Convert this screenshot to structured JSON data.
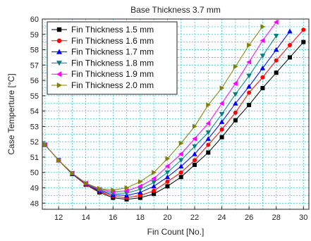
{
  "chart_data": {
    "type": "line",
    "title": "Base Thickness 3.7 mm",
    "xlabel": "Fin Count [No.]",
    "ylabel": "Case Temperture [°C]",
    "xlim": [
      10.8,
      30.4
    ],
    "ylim": [
      47.6,
      60
    ],
    "xticks": [
      12,
      14,
      16,
      18,
      20,
      22,
      24,
      26,
      28,
      30
    ],
    "yticks": [
      48,
      49,
      50,
      51,
      52,
      53,
      54,
      55,
      56,
      57,
      58,
      59,
      60
    ],
    "grid": true,
    "legend_position": "top-left",
    "series": [
      {
        "name": "Fin Thickness 1.5 mm",
        "color": "#000000",
        "marker": "square",
        "x": [
          11,
          12,
          13,
          14,
          15,
          16,
          17,
          18,
          19,
          20,
          21,
          22,
          23,
          24,
          25,
          26,
          27,
          28,
          29,
          30
        ],
        "y": [
          51.8,
          50.8,
          49.9,
          49.2,
          48.7,
          48.35,
          48.25,
          48.35,
          48.6,
          49.1,
          49.7,
          50.5,
          51.3,
          52.3,
          53.4,
          54.4,
          55.5,
          56.5,
          57.5,
          58.5
        ]
      },
      {
        "name": "Fin Thickness 1.6 mm",
        "color": "#ff0000",
        "marker": "circle",
        "x": [
          11,
          12,
          13,
          14,
          15,
          16,
          17,
          18,
          19,
          20,
          21,
          22,
          23,
          24,
          25,
          26,
          27,
          28,
          29,
          30
        ],
        "y": [
          51.8,
          50.8,
          49.9,
          49.2,
          48.75,
          48.45,
          48.35,
          48.5,
          48.8,
          49.4,
          50.0,
          50.8,
          51.8,
          52.8,
          53.9,
          55.2,
          56.2,
          57.3,
          58.3,
          59.3
        ]
      },
      {
        "name": "Fin Thickness 1.7 mm",
        "color": "#0000ff",
        "marker": "triangle-up",
        "x": [
          11,
          12,
          13,
          14,
          15,
          16,
          17,
          18,
          19,
          20,
          21,
          22,
          23,
          24,
          25,
          26,
          27,
          28,
          29
        ],
        "y": [
          51.8,
          50.8,
          49.9,
          49.25,
          48.8,
          48.55,
          48.5,
          48.7,
          49.1,
          49.7,
          50.4,
          51.2,
          52.2,
          53.3,
          54.5,
          55.6,
          56.8,
          58.0,
          59.2
        ]
      },
      {
        "name": "Fin Thickness 1.8 mm",
        "color": "#008080",
        "marker": "triangle-down",
        "x": [
          11,
          12,
          13,
          14,
          15,
          16,
          17,
          18,
          19,
          20,
          21,
          22,
          23,
          24,
          25,
          26,
          27,
          28
        ],
        "y": [
          51.8,
          50.8,
          49.95,
          49.25,
          48.85,
          48.65,
          48.65,
          48.9,
          49.35,
          50.0,
          50.8,
          51.7,
          52.6,
          53.8,
          55.1,
          56.3,
          57.6,
          58.9
        ]
      },
      {
        "name": "Fin Thickness 1.9 mm",
        "color": "#ff00ff",
        "marker": "triangle-left",
        "x": [
          11,
          12,
          13,
          14,
          15,
          16,
          17,
          18,
          19,
          20,
          21,
          22,
          23,
          24,
          25,
          26,
          27,
          28
        ],
        "y": [
          51.8,
          50.8,
          49.95,
          49.3,
          48.9,
          48.75,
          48.8,
          49.1,
          49.6,
          50.4,
          51.2,
          52.2,
          53.2,
          54.5,
          55.8,
          57.2,
          58.6,
          59.8
        ]
      },
      {
        "name": "Fin Thickness 2.0 mm",
        "color": "#808000",
        "marker": "triangle-right",
        "x": [
          11,
          12,
          13,
          14,
          15,
          16,
          17,
          18,
          19,
          20,
          21,
          22,
          23,
          24,
          25,
          26,
          27
        ],
        "y": [
          51.8,
          50.8,
          49.95,
          49.3,
          48.95,
          48.85,
          49.0,
          49.4,
          50.0,
          50.9,
          51.9,
          53.0,
          54.4,
          55.5,
          56.9,
          58.3,
          59.5
        ]
      }
    ]
  }
}
